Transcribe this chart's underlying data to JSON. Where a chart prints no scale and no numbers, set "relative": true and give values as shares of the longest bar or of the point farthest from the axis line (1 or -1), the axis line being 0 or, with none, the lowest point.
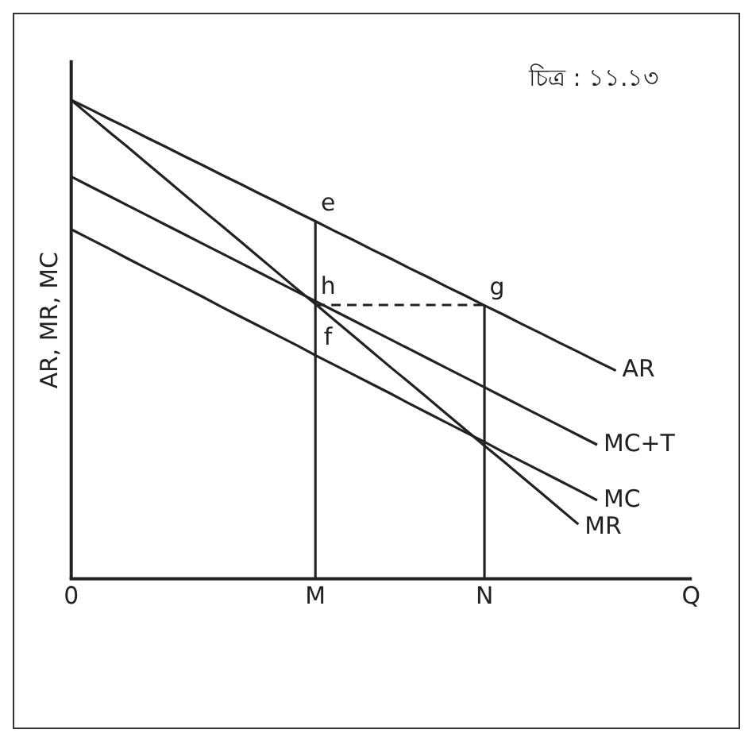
{
  "chart_data": {
    "type": "line",
    "title": "চিত্র : ১১.১৩",
    "ylabel": "AR, MR, MC",
    "relative": true,
    "grid": false,
    "legend": false,
    "marker": "none",
    "categories": [
      "0",
      null,
      null,
      null,
      null,
      null,
      null,
      null,
      null,
      null,
      null,
      null,
      null,
      "M",
      null,
      null,
      null,
      null,
      null,
      null,
      null,
      null,
      "N",
      null,
      null,
      null,
      null,
      null,
      null,
      null,
      null,
      null,
      null,
      "Q"
    ],
    "series": [
      {
        "name": "AR",
        "color": "#222222",
        "values": [
          1,
          0.981,
          0.961,
          0.942,
          0.922,
          0.903,
          0.883,
          0.864,
          0.844,
          0.825,
          0.805,
          0.786,
          0.766,
          0.747,
          0.727,
          0.708,
          0.688,
          0.669,
          0.649,
          0.63,
          0.61,
          0.591,
          0.571,
          0.552,
          0.532,
          0.513,
          0.493,
          0.474,
          0.454,
          0.435,
          null,
          null,
          null,
          null
        ]
      },
      {
        "name": "MC+T",
        "color": "#222222",
        "values": [
          0.84,
          0.82,
          0.8,
          0.78,
          0.76,
          0.74,
          0.72,
          0.7,
          0.68,
          0.66,
          0.64,
          0.62,
          0.6,
          0.58,
          0.56,
          0.54,
          0.52,
          0.5,
          0.48,
          0.46,
          0.44,
          0.42,
          0.4,
          0.38,
          0.36,
          0.34,
          0.32,
          0.3,
          0.28,
          null,
          null,
          null,
          null,
          null
        ]
      },
      {
        "name": "MC",
        "color": "#222222",
        "values": [
          0.73,
          0.71,
          0.69,
          0.669,
          0.649,
          0.629,
          0.609,
          0.589,
          0.568,
          0.548,
          0.528,
          0.508,
          0.488,
          0.467,
          0.447,
          0.427,
          0.407,
          0.387,
          0.366,
          0.346,
          0.326,
          0.306,
          0.286,
          0.265,
          0.245,
          0.225,
          0.205,
          0.185,
          0.164,
          null,
          null,
          null,
          null,
          null
        ]
      },
      {
        "name": "MR",
        "color": "#222222",
        "values": [
          1,
          0.967,
          0.934,
          0.902,
          0.869,
          0.836,
          0.803,
          0.77,
          0.738,
          0.705,
          0.672,
          0.639,
          0.606,
          0.574,
          0.541,
          0.508,
          0.475,
          0.442,
          0.41,
          0.377,
          0.344,
          0.311,
          0.278,
          0.246,
          0.213,
          0.18,
          0.147,
          0.114,
          null,
          null,
          null,
          null,
          null,
          null
        ]
      },
      {
        "color": "#222222",
        "x": [
          "M",
          "M"
        ],
        "values": [
          0,
          0.747
        ]
      },
      {
        "color": "#222222",
        "x": [
          "N",
          "N"
        ],
        "values": [
          0,
          0.571
        ]
      },
      {
        "color": "#222222",
        "x": [
          "M",
          "N"
        ],
        "values": [
          0.572,
          0.572
        ],
        "line_style": "dashed"
      }
    ],
    "annotations": [
      {
        "text": "e",
        "x": "M",
        "y": 0.747
      },
      {
        "text": "h",
        "x": "M",
        "y": 0.574
      },
      {
        "text": "f",
        "x": "M",
        "y": 0.467
      },
      {
        "text": "g",
        "x": "N",
        "y": 0.571
      }
    ]
  }
}
